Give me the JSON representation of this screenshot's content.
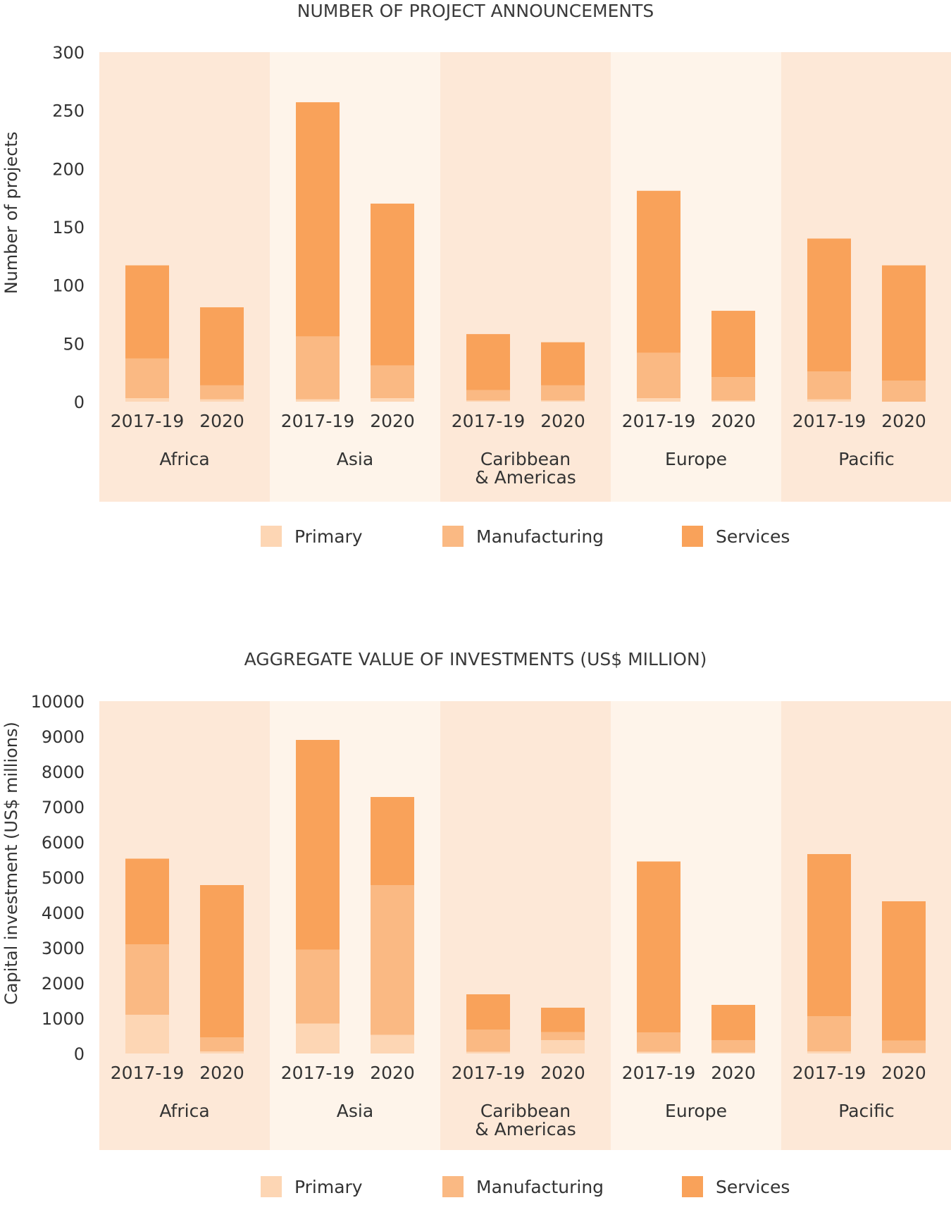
{
  "colors": {
    "primary": "#FDD6B4",
    "manufacturing": "#FAB983",
    "services": "#F9A25A",
    "band_dark": "#FDE8D7",
    "band_light": "#FEF4EA"
  },
  "chart_data": [
    {
      "type": "bar",
      "stacked": true,
      "title": "NUMBER OF PROJECT ANNOUNCEMENTS",
      "ylabel": "Number of projects",
      "ylim": [
        0,
        300
      ],
      "yticks": [
        "0",
        "50",
        "100",
        "150",
        "200",
        "250",
        "300"
      ],
      "regions": [
        {
          "name_lines": [
            "Africa"
          ]
        },
        {
          "name_lines": [
            "Asia"
          ]
        },
        {
          "name_lines": [
            "Caribbean",
            "& Americas"
          ]
        },
        {
          "name_lines": [
            "Europe"
          ]
        },
        {
          "name_lines": [
            "Pacific"
          ]
        }
      ],
      "categories": [
        "2017-19",
        "2020",
        "2017-19",
        "2020",
        "2017-19",
        "2020",
        "2017-19",
        "2020",
        "2017-19",
        "2020"
      ],
      "series": [
        {
          "name": "Primary",
          "values": [
            3,
            2,
            2,
            3,
            1,
            1,
            3,
            1,
            2,
            0
          ]
        },
        {
          "name": "Manufacturing",
          "values": [
            34,
            12,
            54,
            28,
            9,
            13,
            39,
            20,
            24,
            18
          ]
        },
        {
          "name": "Services",
          "values": [
            80,
            67,
            201,
            139,
            48,
            37,
            139,
            57,
            114,
            99
          ]
        }
      ],
      "legend": {
        "position": "bottom",
        "labels": [
          "Primary",
          "Manufacturing",
          "Services"
        ]
      }
    },
    {
      "type": "bar",
      "stacked": true,
      "title": "AGGREGATE VALUE OF INVESTMENTS (US$ MILLION)",
      "ylabel": "Capital investment (US$ millions)",
      "ylim": [
        0,
        10000
      ],
      "yticks": [
        "0",
        "1000",
        "2000",
        "3000",
        "4000",
        "5000",
        "6000",
        "7000",
        "8000",
        "9000",
        "10000"
      ],
      "regions": [
        {
          "name_lines": [
            "Africa"
          ]
        },
        {
          "name_lines": [
            "Asia"
          ]
        },
        {
          "name_lines": [
            "Caribbean",
            "& Americas"
          ]
        },
        {
          "name_lines": [
            "Europe"
          ]
        },
        {
          "name_lines": [
            "Pacific"
          ]
        }
      ],
      "categories": [
        "2017-19",
        "2020",
        "2017-19",
        "2020",
        "2017-19",
        "2020",
        "2017-19",
        "2020",
        "2017-19",
        "2020"
      ],
      "series": [
        {
          "name": "Primary",
          "values": [
            1100,
            60,
            850,
            530,
            50,
            380,
            50,
            30,
            60,
            20
          ]
        },
        {
          "name": "Manufacturing",
          "values": [
            2000,
            400,
            2100,
            4250,
            630,
            230,
            550,
            350,
            1000,
            350
          ]
        },
        {
          "name": "Services",
          "values": [
            2430,
            4320,
            5950,
            2500,
            1000,
            690,
            4850,
            1000,
            4600,
            3950
          ]
        }
      ],
      "legend": {
        "position": "bottom",
        "labels": [
          "Primary",
          "Manufacturing",
          "Services"
        ]
      }
    }
  ]
}
